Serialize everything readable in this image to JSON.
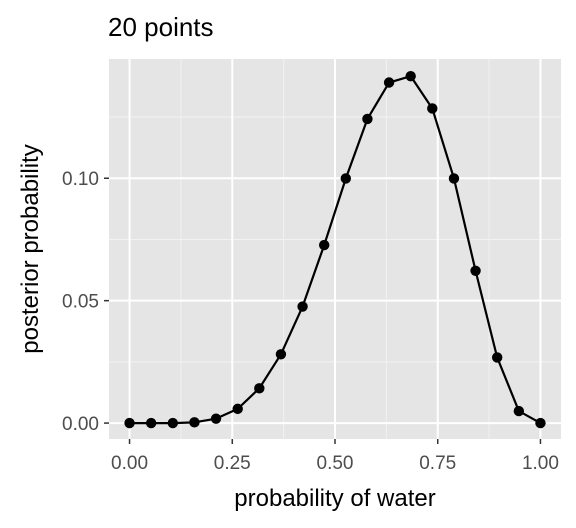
{
  "chart_data": {
    "type": "line",
    "title": "20 points",
    "xlabel": "probability of water",
    "ylabel": "posterior probability",
    "xlim": [
      -0.05,
      1.05
    ],
    "ylim": [
      -0.0065,
      0.1487
    ],
    "x_ticks": [
      {
        "value": 0.0,
        "label": "0.00"
      },
      {
        "value": 0.25,
        "label": "0.25"
      },
      {
        "value": 0.5,
        "label": "0.50"
      },
      {
        "value": 0.75,
        "label": "0.75"
      },
      {
        "value": 1.0,
        "label": "1.00"
      }
    ],
    "y_ticks": [
      {
        "value": 0.0,
        "label": "0.00"
      },
      {
        "value": 0.05,
        "label": "0.05"
      },
      {
        "value": 0.1,
        "label": "0.10"
      }
    ],
    "grid": true,
    "background": "#e5e5e5",
    "line_color": "#000000",
    "point_color": "#000000",
    "series": [
      {
        "x": [
          0.0,
          0.0526,
          0.1053,
          0.1579,
          0.2105,
          0.2632,
          0.3158,
          0.3684,
          0.4211,
          0.4737,
          0.5263,
          0.5789,
          0.6316,
          0.6842,
          0.7368,
          0.7895,
          0.8421,
          0.8947,
          0.9474,
          1.0
        ],
        "values": [
          0.0,
          0.0,
          0.0,
          0.0003,
          0.0018,
          0.0058,
          0.0142,
          0.0281,
          0.0476,
          0.0727,
          0.0999,
          0.1242,
          0.1391,
          0.1417,
          0.1285,
          0.0999,
          0.0622,
          0.0268,
          0.0049,
          0.0
        ]
      }
    ]
  }
}
